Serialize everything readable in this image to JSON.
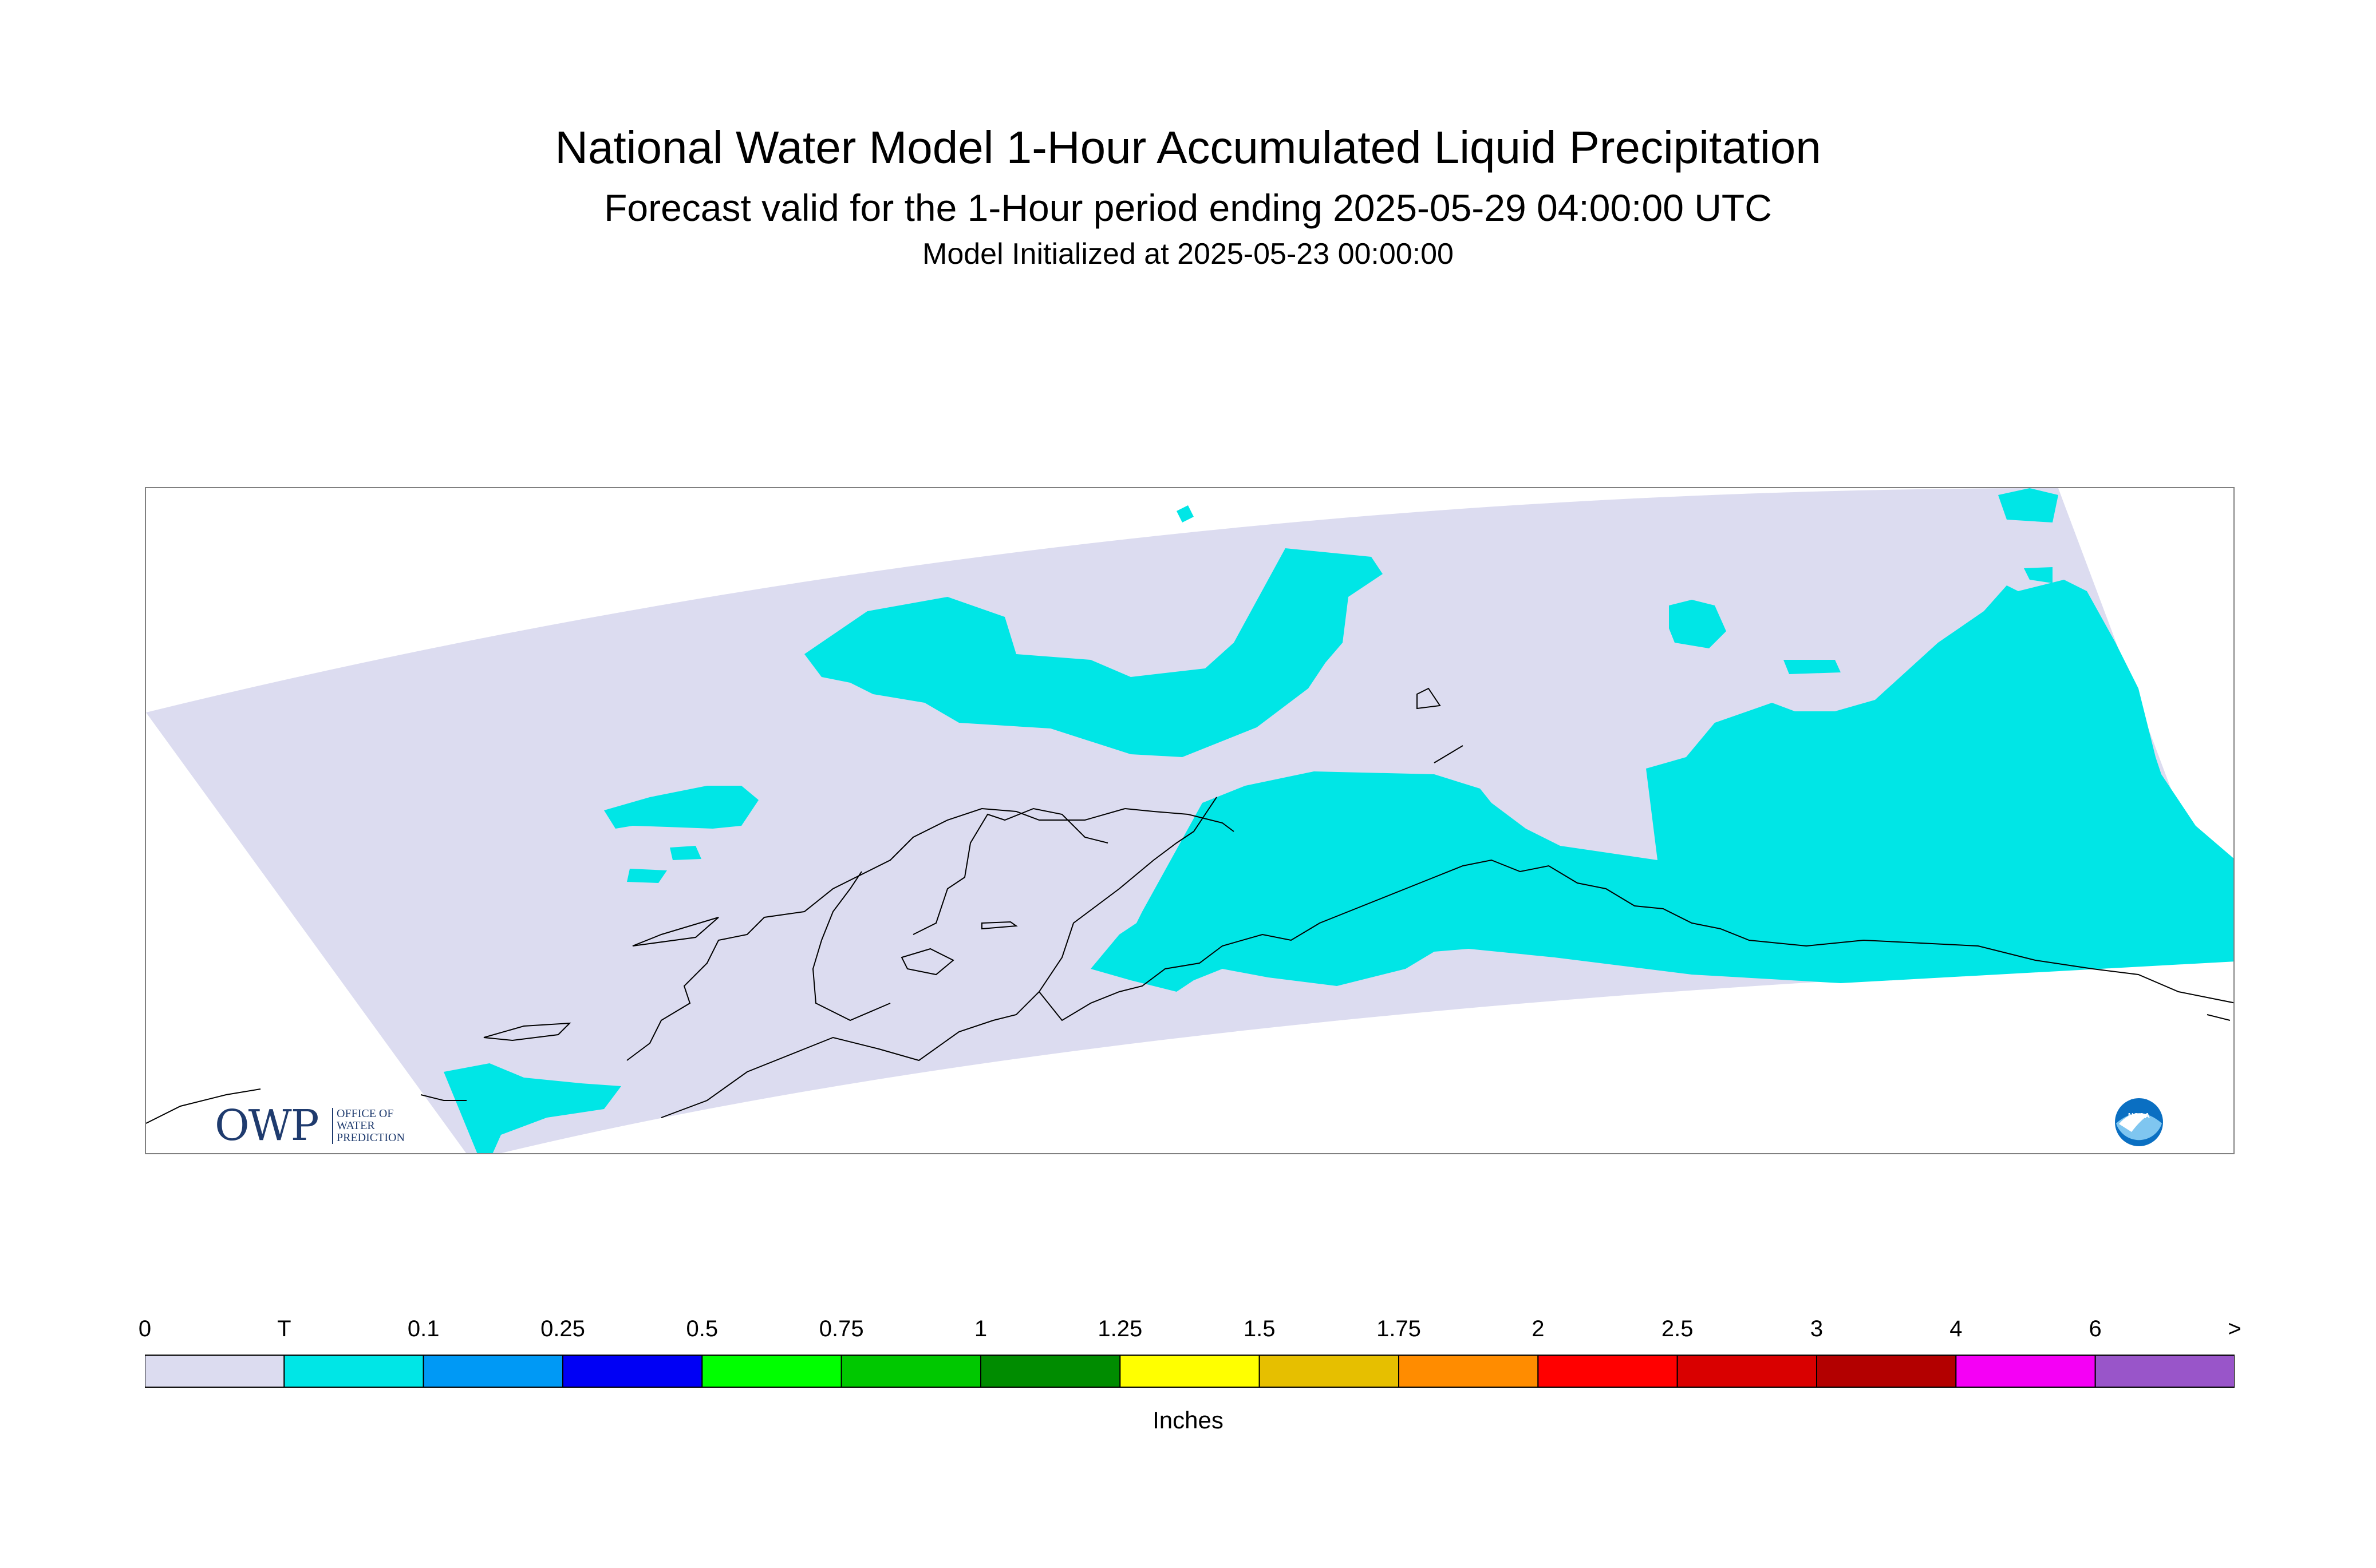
{
  "header": {
    "title": "National Water Model 1-Hour Accumulated Liquid Precipitation",
    "subtitle": "Forecast valid for the 1-Hour period ending 2025-05-29 04:00:00 UTC",
    "init": "Model Initialized at 2025-05-23 00:00:00"
  },
  "logos": {
    "owp_letters": "OWP",
    "owp_line1": "OFFICE OF",
    "owp_line2": "WATER",
    "owp_line3": "PREDICTION",
    "noaa": "NOAA"
  },
  "legend": {
    "labels": [
      "0",
      "T",
      "0.1",
      "0.25",
      "0.5",
      "0.75",
      "1",
      "1.25",
      "1.5",
      "1.75",
      "2",
      "2.5",
      "3",
      "4",
      "6",
      ">"
    ],
    "colors": [
      "#dcdcf0",
      "#00e6e6",
      "#0099f5",
      "#0000f5",
      "#00ff00",
      "#00c800",
      "#008c00",
      "#ffff00",
      "#e6bf00",
      "#ff8c00",
      "#ff0000",
      "#d90000",
      "#b30000",
      "#f500f5",
      "#9955c9"
    ],
    "units": "Inches"
  },
  "map": {
    "domain_color": "#dcdcf0",
    "precip_color": "#00e6e6",
    "coast_color": "#000000"
  }
}
